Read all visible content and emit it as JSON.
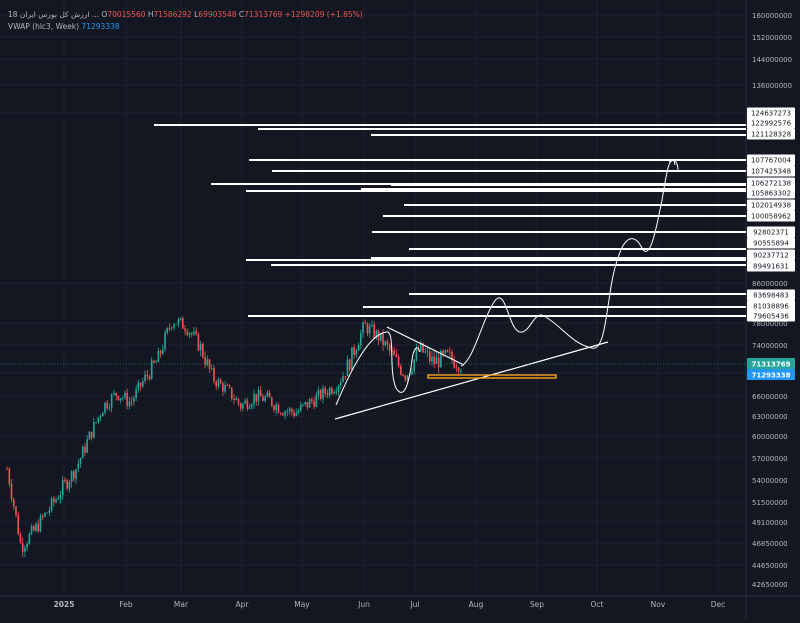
{
  "header": {
    "symbol": "ارزش کل بورس ایران 18 ...",
    "o_label": "O",
    "o_value": "70015560",
    "h_label": "H",
    "h_value": "71586292",
    "l_label": "L",
    "l_value": "69903548",
    "c_label": "C",
    "c_value": "71313769",
    "change": "+1298209 (+1.85%)",
    "indicator_name": "VWAP (hlc3, Week)",
    "indicator_value": "71293338"
  },
  "colors": {
    "background": "#131722",
    "up": "#26a69a",
    "down": "#ef5350",
    "vwap": "#2196f3",
    "box": "#f5a623",
    "level_line": "#ffffff"
  },
  "chart_data": {
    "type": "candlestick",
    "y_axis_ticks": [
      "160000000",
      "152000000",
      "144000000",
      "136000000",
      "128000000",
      "86000000",
      "78000000",
      "74000000",
      "70000000",
      "66000000",
      "63000000",
      "60000000",
      "57000000",
      "54000000",
      "51500000",
      "49100000",
      "46850000",
      "44650000",
      "42650000"
    ],
    "x_axis_ticks": [
      "2025",
      "Feb",
      "Mar",
      "Apr",
      "May",
      "Jun",
      "Jul",
      "Aug",
      "Sep",
      "Oct",
      "Nov",
      "Dec"
    ],
    "level_labels": [
      "124637273",
      "122992576",
      "121128328",
      "107767004",
      "107425348",
      "106272138",
      "105863302",
      "102014938",
      "100058962",
      "92802371",
      "90555894",
      "90237712",
      "89491631",
      "83698483",
      "81038896",
      "79605436"
    ],
    "last_price_label": "71313769",
    "vwap_label": "71293338",
    "trend": [
      55500000,
      46500000,
      48200000,
      50500000,
      53000000,
      55500000,
      60000000,
      64500000,
      66500000,
      65000000,
      69000000,
      72000000,
      78500000,
      77500000,
      74000000,
      69000000,
      67000000,
      64500000,
      66000000,
      65500000,
      64000000,
      63500000,
      65000000,
      66500000,
      68000000,
      72000000,
      77500000,
      75500000,
      72500000,
      69500000,
      73500000,
      71500000,
      72300000,
      71300000
    ]
  }
}
